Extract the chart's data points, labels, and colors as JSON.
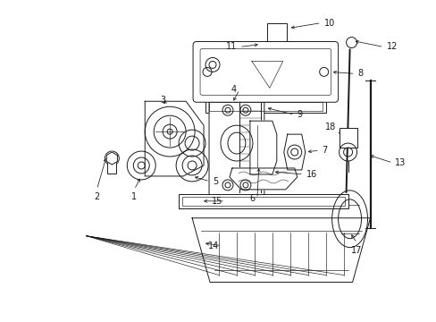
{
  "bg_color": "#ffffff",
  "line_color": "#1a1a1a",
  "figsize": [
    4.89,
    3.6
  ],
  "dpi": 100,
  "font_size": 7.0,
  "lw_main": 0.7,
  "lw_thin": 0.45,
  "lw_thick": 1.0
}
